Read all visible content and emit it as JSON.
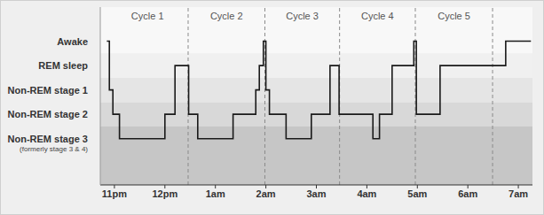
{
  "chart_data": {
    "type": "line",
    "line_style": "step",
    "color": "#1a1a1a",
    "x": [
      22.85,
      22.9,
      22.97,
      23.1,
      24.0,
      24.2,
      24.47,
      24.65,
      25.35,
      25.8,
      25.87,
      25.95,
      26.0,
      26.07,
      26.4,
      26.9,
      27.27,
      27.45,
      28.12,
      28.25,
      28.5,
      28.93,
      28.98,
      29.45,
      30.75,
      31.25
    ],
    "values": [
      4,
      2,
      1,
      0,
      1,
      3,
      1,
      0,
      1,
      2,
      3,
      4,
      2,
      1,
      0,
      1,
      3,
      1,
      0,
      1,
      3,
      4,
      1,
      3,
      4,
      4
    ],
    "xlim": [
      22.72,
      31.28
    ],
    "xticks": [
      {
        "value": 23,
        "label": "11pm"
      },
      {
        "value": 24,
        "label": "12pm"
      },
      {
        "value": 25,
        "label": "1am"
      },
      {
        "value": 26,
        "label": "2am"
      },
      {
        "value": 27,
        "label": "3am"
      },
      {
        "value": 28,
        "label": "4am"
      },
      {
        "value": 29,
        "label": "5am"
      },
      {
        "value": 30,
        "label": "6am"
      },
      {
        "value": 31,
        "label": "7am"
      }
    ],
    "ylim": [
      -1.9,
      5.4
    ],
    "yticks": [
      {
        "value": 0,
        "label": "Non-REM stage 3",
        "sublabel": "(formerly stage 3 & 4)"
      },
      {
        "value": 1,
        "label": "Non-REM stage 2"
      },
      {
        "value": 2,
        "label": "Non-REM stage 1"
      },
      {
        "value": 3,
        "label": "REM sleep"
      },
      {
        "value": 4,
        "label": "Awake"
      }
    ],
    "cycles": {
      "labels": [
        "Cycle 1",
        "Cycle 2",
        "Cycle 3",
        "Cycle 4",
        "Cycle 5"
      ],
      "boundaries": [
        24.46,
        25.98,
        27.46,
        28.96,
        30.49
      ]
    }
  }
}
